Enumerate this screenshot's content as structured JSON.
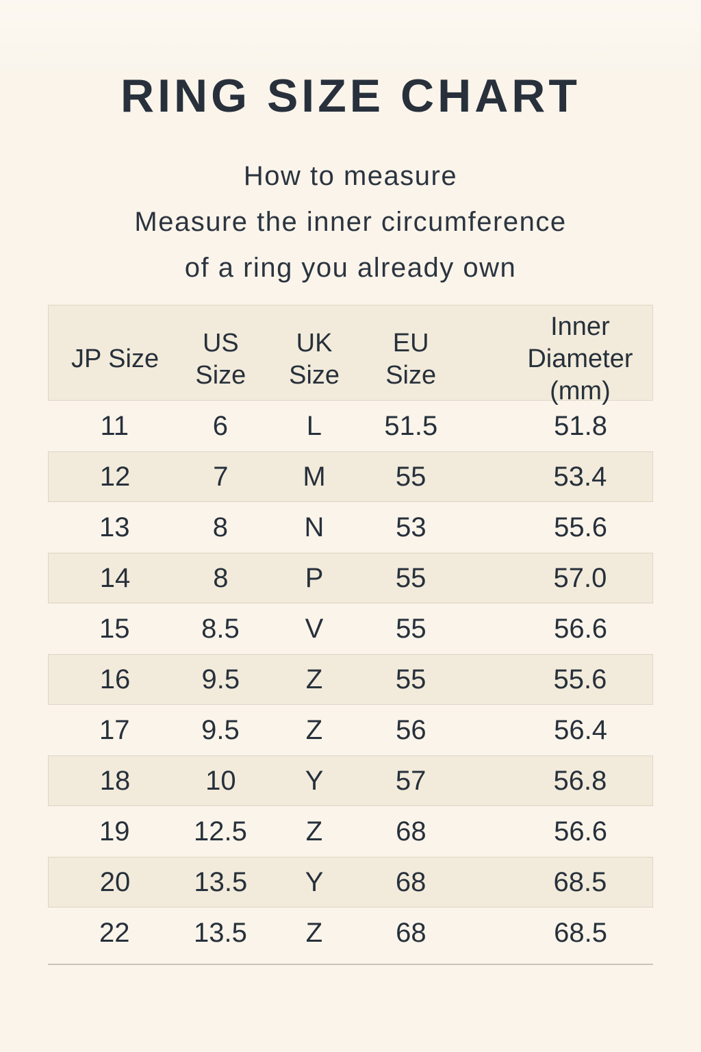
{
  "page": {
    "title": "RING SIZE CHART",
    "subtitle_lines": [
      "How to measure",
      "Measure the inner circumference",
      "of a ring you already own"
    ]
  },
  "colors": {
    "background": "#faf4ea",
    "panel": "#f2ebdb",
    "panel_border": "#dcd5c6",
    "text": "#27303b",
    "divider": "#c9c3b8"
  },
  "chart_data": {
    "type": "table",
    "title": "RING SIZE CHART",
    "columns": [
      {
        "label": "JP Size",
        "lines": [
          "JP Size"
        ]
      },
      {
        "label": "US Size",
        "lines": [
          "US",
          "Size"
        ]
      },
      {
        "label": "UK Size",
        "lines": [
          "UK",
          "Size"
        ]
      },
      {
        "label": "EU Size",
        "lines": [
          "EU",
          "Size"
        ]
      },
      {
        "label": "Inner Diameter (mm)",
        "lines": [
          "Inner",
          "Diameter",
          "(mm)"
        ]
      }
    ],
    "rows": [
      [
        "11",
        "6",
        "L",
        "51.5",
        "51.8"
      ],
      [
        "12",
        "7",
        "M",
        "55",
        "53.4"
      ],
      [
        "13",
        "8",
        "N",
        "53",
        "55.6"
      ],
      [
        "14",
        "8",
        "P",
        "55",
        "57.0"
      ],
      [
        "15",
        "8.5",
        "V",
        "55",
        "56.6"
      ],
      [
        "16",
        "9.5",
        "Z",
        "55",
        "55.6"
      ],
      [
        "17",
        "9.5",
        "Z",
        "56",
        "56.4"
      ],
      [
        "18",
        "10",
        "Y",
        "57",
        "56.8"
      ],
      [
        "19",
        "12.5",
        "Z",
        "68",
        "56.6"
      ],
      [
        "20",
        "13.5",
        "Y",
        "68",
        "68.5"
      ],
      [
        "22",
        "13.5",
        "Z",
        "68",
        "68.5"
      ]
    ],
    "shaded_row_indices": [
      1,
      3,
      5,
      7,
      9
    ]
  }
}
